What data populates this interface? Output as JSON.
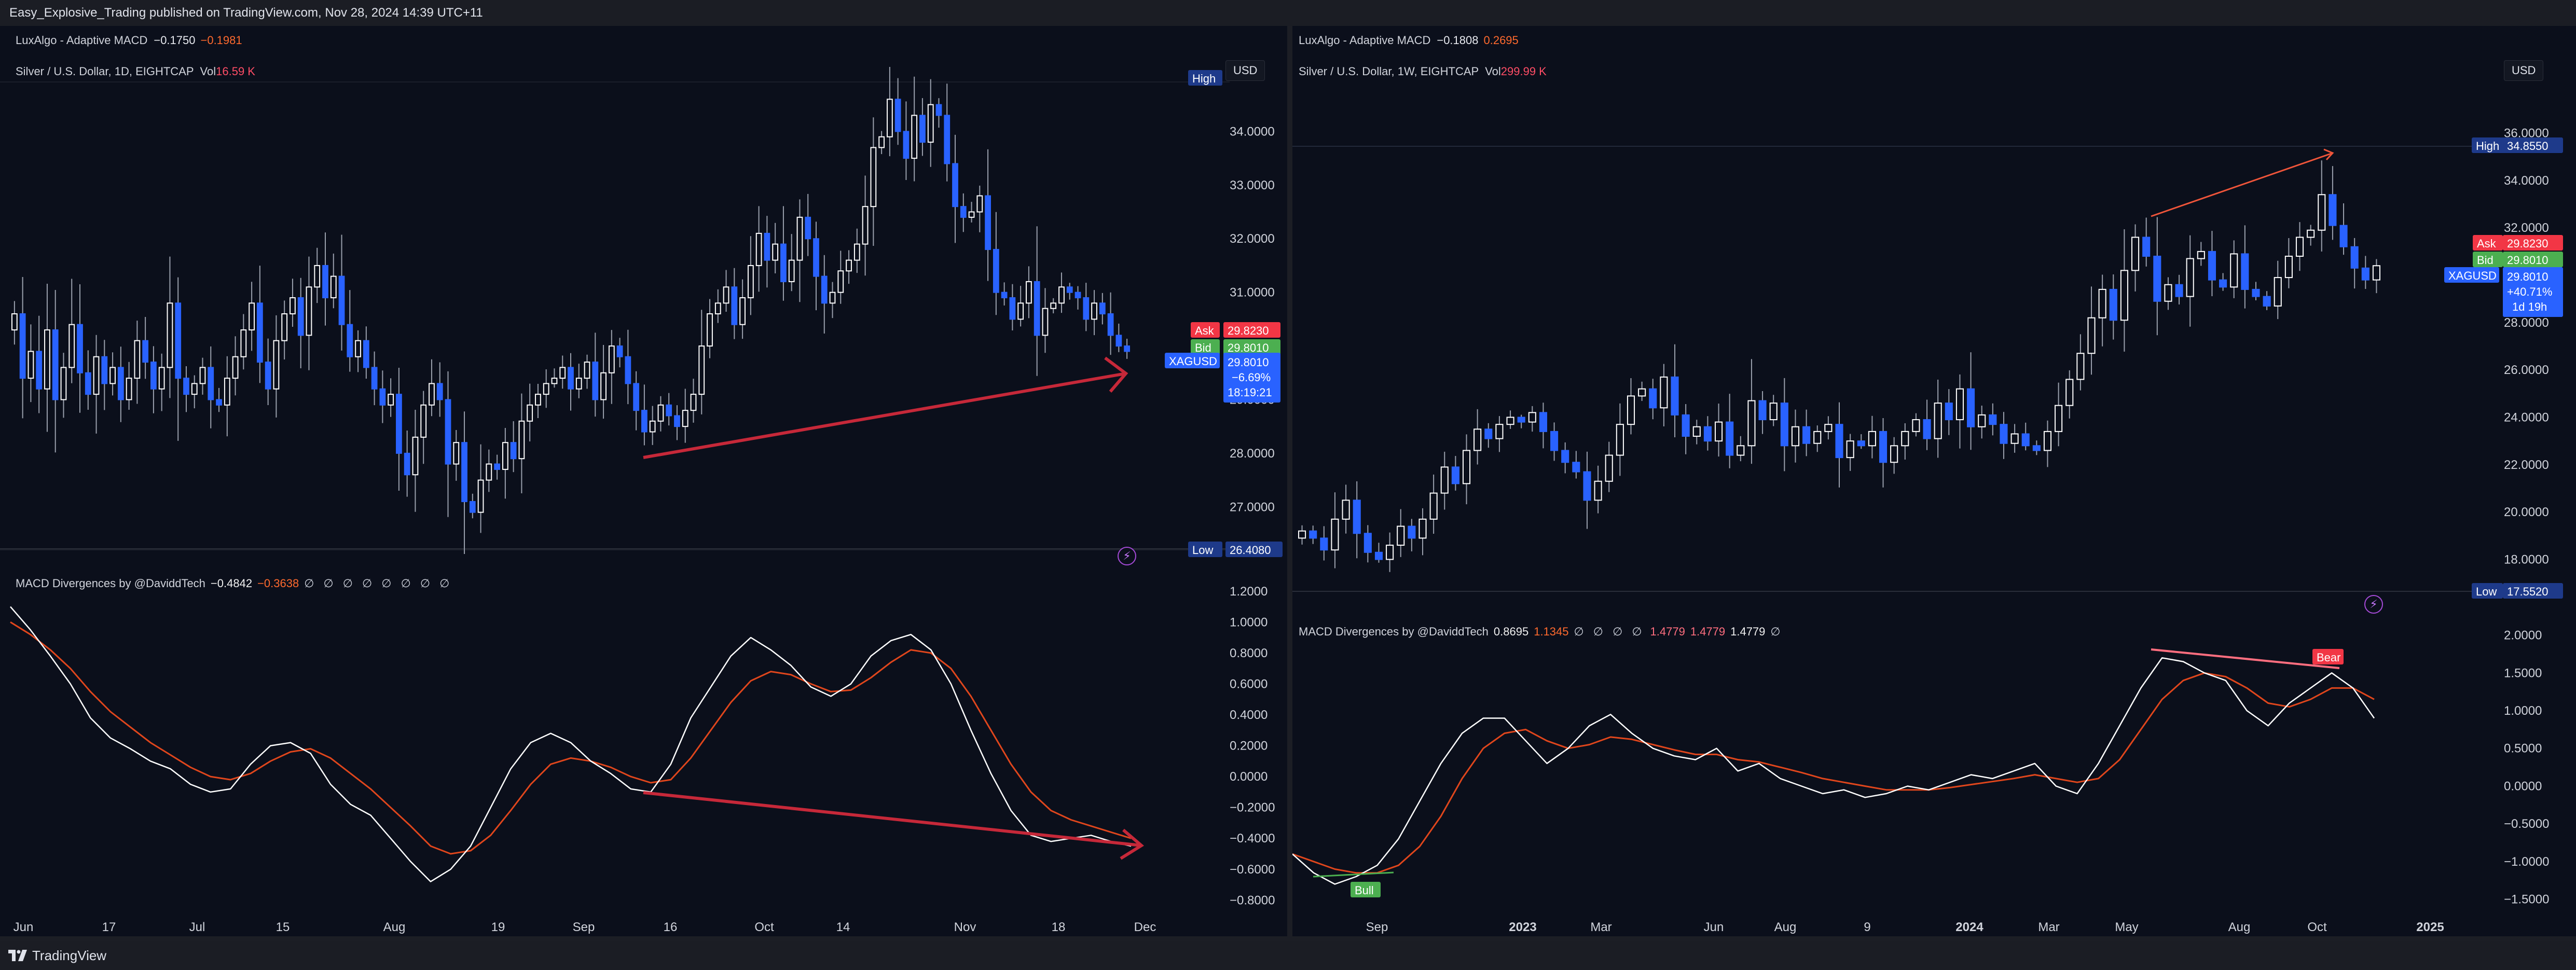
{
  "header": {
    "title": "Easy_Explosive_Trading published on TradingView.com, Nov 28, 2024 14:39 UTC+11"
  },
  "footer": {
    "brand": "TradingView"
  },
  "left": {
    "lux": {
      "name": "LuxAlgo - Adaptive MACD",
      "v1": "−0.1750",
      "v2": "−0.1981"
    },
    "symbol": {
      "name": "Silver / U.S. Dollar, 1D, EIGHTCAP",
      "vol_label": "Vol",
      "vol_value": "16.59 K"
    },
    "usd": "USD",
    "macd": {
      "name": "MACD Divergences by @DaviddTech",
      "v1": "−0.4842",
      "v2": "−0.3638",
      "na": "∅ ∅ ∅ ∅ ∅ ∅ ∅ ∅"
    },
    "bolt": "⚡"
  },
  "right": {
    "lux": {
      "name": "LuxAlgo - Adaptive MACD",
      "v1": "−0.1808",
      "v2": "0.2695"
    },
    "symbol": {
      "name": "Silver / U.S. Dollar, 1W, EIGHTCAP",
      "vol_label": "Vol",
      "vol_value": "299.99 K"
    },
    "usd": "USD",
    "macd": {
      "name": "MACD Divergences by @DaviddTech",
      "v1": "0.8695",
      "v2": "1.1345",
      "na1": "∅ ∅ ∅ ∅",
      "v3": "1.4779",
      "v4": "1.4779",
      "v5": "1.4779",
      "na2": "∅"
    },
    "bolt": "⚡"
  },
  "colors": {
    "up": "#ffffff",
    "down": "#2962ff",
    "wick": "#9aa0ad",
    "macd": "#ffffff",
    "signal": "#e0461c",
    "arrow": "#c62839",
    "ask": "#f23645",
    "bid": "#4caf50",
    "price": "#2962ff",
    "hl": "#1e3a8a",
    "bull": "#4caf50",
    "bear": "#f23645"
  },
  "chart_data": [
    {
      "id": "left-price",
      "type": "candlestick",
      "timeframe": "1D",
      "ylim": [
        26.2,
        35.0
      ],
      "y_ticks": [
        "34.0000",
        "33.0000",
        "32.0000",
        "31.0000",
        "30.0000",
        "29.0000",
        "28.0000",
        "27.0000"
      ],
      "x_ticks": [
        "Jun",
        "17",
        "Jul",
        "15",
        "Aug",
        "19",
        "Sep",
        "16",
        "Oct",
        "14",
        "Nov",
        "18",
        "Dec"
      ],
      "closes": [
        30.6,
        29.4,
        29.9,
        29.2,
        30.3,
        29.0,
        29.6,
        30.4,
        29.5,
        29.1,
        29.8,
        29.3,
        29.6,
        29.0,
        29.4,
        30.1,
        29.7,
        29.2,
        29.6,
        30.8,
        29.4,
        29.1,
        29.3,
        29.6,
        29.0,
        28.9,
        29.4,
        29.8,
        30.3,
        30.8,
        29.7,
        29.2,
        30.1,
        30.6,
        30.9,
        30.2,
        31.1,
        31.5,
        30.9,
        31.3,
        30.4,
        29.8,
        30.1,
        29.6,
        29.2,
        28.9,
        29.1,
        28.0,
        27.6,
        28.3,
        28.9,
        29.3,
        29.0,
        27.8,
        28.2,
        27.1,
        26.9,
        27.5,
        27.8,
        27.7,
        28.2,
        27.9,
        28.6,
        28.9,
        29.1,
        29.3,
        29.4,
        29.6,
        29.2,
        29.4,
        29.7,
        29.0,
        29.5,
        30.0,
        29.8,
        29.3,
        28.8,
        28.4,
        28.6,
        28.9,
        28.7,
        28.5,
        28.8,
        29.1,
        30.0,
        30.6,
        30.8,
        31.1,
        30.4,
        30.9,
        31.5,
        32.1,
        31.6,
        31.9,
        31.2,
        31.6,
        32.4,
        32.0,
        31.3,
        30.8,
        31.0,
        31.4,
        31.6,
        31.9,
        32.6,
        33.7,
        33.9,
        34.6,
        34.0,
        33.5,
        34.3,
        33.8,
        34.5,
        34.3,
        33.4,
        32.6,
        32.4,
        32.5,
        32.8,
        31.8,
        31.0,
        30.9,
        30.5,
        30.8,
        31.2,
        30.2,
        30.7,
        30.8,
        31.1,
        31.0,
        30.9,
        30.5,
        30.8,
        30.6,
        30.2,
        30.0,
        29.9
      ]
    },
    {
      "id": "left-macd",
      "type": "line",
      "ylim": [
        -0.95,
        1.3
      ],
      "y_ticks": [
        "1.2000",
        "1.0000",
        "0.8000",
        "0.6000",
        "0.4000",
        "0.2000",
        "0.0000",
        "−0.2000",
        "−0.4000",
        "−0.6000",
        "−0.8000"
      ],
      "series": [
        {
          "role": "macd",
          "values": [
            1.1,
            0.95,
            0.78,
            0.6,
            0.38,
            0.25,
            0.18,
            0.1,
            0.05,
            -0.05,
            -0.1,
            -0.08,
            0.08,
            0.2,
            0.22,
            0.15,
            -0.05,
            -0.18,
            -0.25,
            -0.4,
            -0.55,
            -0.68,
            -0.6,
            -0.45,
            -0.2,
            0.05,
            0.22,
            0.28,
            0.22,
            0.1,
            0.02,
            -0.08,
            -0.1,
            0.08,
            0.38,
            0.58,
            0.78,
            0.9,
            0.82,
            0.72,
            0.58,
            0.52,
            0.6,
            0.78,
            0.88,
            0.92,
            0.82,
            0.6,
            0.3,
            0.02,
            -0.22,
            -0.38,
            -0.42,
            -0.4,
            -0.38,
            -0.42,
            -0.45
          ]
        },
        {
          "role": "signal",
          "values": [
            1.0,
            0.92,
            0.82,
            0.7,
            0.55,
            0.42,
            0.32,
            0.22,
            0.14,
            0.06,
            0.0,
            -0.02,
            0.02,
            0.1,
            0.16,
            0.18,
            0.12,
            0.02,
            -0.08,
            -0.2,
            -0.32,
            -0.45,
            -0.5,
            -0.48,
            -0.38,
            -0.22,
            -0.05,
            0.08,
            0.12,
            0.1,
            0.06,
            0.0,
            -0.04,
            -0.02,
            0.12,
            0.3,
            0.48,
            0.62,
            0.68,
            0.66,
            0.6,
            0.55,
            0.56,
            0.64,
            0.74,
            0.82,
            0.8,
            0.7,
            0.52,
            0.3,
            0.08,
            -0.1,
            -0.22,
            -0.28,
            -0.32,
            -0.36,
            -0.4
          ]
        }
      ]
    },
    {
      "id": "right-price",
      "type": "candlestick",
      "timeframe": "1W",
      "ylim": [
        17.2,
        36.8
      ],
      "y_ticks": [
        "36.0000",
        "34.0000",
        "32.0000",
        "30.0000",
        "28.0000",
        "26.0000",
        "24.0000",
        "22.0000",
        "20.0000",
        "18.0000"
      ],
      "x_ticks": [
        "Sep",
        "2023",
        "Mar",
        "Jun",
        "Aug",
        "9",
        "2024",
        "Mar",
        "May",
        "Aug",
        "Oct",
        "2025"
      ],
      "closes": [
        19.2,
        18.9,
        18.4,
        19.7,
        20.5,
        19.1,
        18.3,
        18.0,
        18.6,
        19.4,
        18.9,
        19.7,
        20.8,
        21.9,
        21.2,
        22.6,
        23.5,
        23.1,
        23.7,
        24.0,
        23.8,
        24.2,
        23.4,
        22.6,
        22.1,
        21.7,
        20.5,
        21.3,
        22.4,
        23.7,
        24.9,
        25.2,
        24.4,
        25.7,
        24.1,
        23.2,
        23.6,
        23.0,
        23.8,
        22.4,
        22.8,
        24.7,
        23.9,
        24.6,
        22.8,
        23.6,
        22.9,
        23.4,
        23.7,
        22.3,
        23.0,
        22.8,
        23.4,
        22.1,
        22.8,
        23.4,
        23.9,
        23.1,
        24.6,
        23.9,
        25.2,
        23.6,
        24.1,
        23.7,
        22.9,
        23.3,
        22.8,
        22.6,
        23.4,
        24.5,
        25.6,
        26.7,
        28.2,
        29.4,
        28.1,
        30.2,
        31.6,
        30.8,
        28.9,
        29.6,
        29.1,
        30.7,
        31.0,
        29.8,
        29.5,
        30.9,
        29.4,
        29.1,
        28.7,
        29.9,
        30.8,
        31.6,
        31.9,
        33.4,
        32.1,
        31.2,
        30.3,
        29.8,
        30.4
      ]
    },
    {
      "id": "right-macd",
      "type": "line",
      "ylim": [
        -1.75,
        2.1
      ],
      "y_ticks": [
        "2.0000",
        "1.5000",
        "1.0000",
        "0.5000",
        "0.0000",
        "−0.5000",
        "−1.0000",
        "−1.5000"
      ],
      "series": [
        {
          "role": "macd",
          "values": [
            -0.9,
            -1.15,
            -1.3,
            -1.2,
            -1.05,
            -0.7,
            -0.2,
            0.3,
            0.7,
            0.9,
            0.9,
            0.6,
            0.3,
            0.5,
            0.8,
            0.95,
            0.7,
            0.5,
            0.4,
            0.35,
            0.5,
            0.2,
            0.3,
            0.1,
            0.0,
            -0.1,
            -0.05,
            -0.15,
            -0.1,
            0.0,
            -0.05,
            0.05,
            0.15,
            0.1,
            0.2,
            0.3,
            0.0,
            -0.1,
            0.3,
            0.8,
            1.3,
            1.7,
            1.65,
            1.5,
            1.4,
            1.0,
            0.8,
            1.1,
            1.3,
            1.5,
            1.3,
            0.9
          ]
        },
        {
          "role": "signal",
          "values": [
            -0.9,
            -1.0,
            -1.1,
            -1.15,
            -1.15,
            -1.05,
            -0.8,
            -0.4,
            0.1,
            0.5,
            0.7,
            0.75,
            0.6,
            0.5,
            0.55,
            0.65,
            0.62,
            0.55,
            0.48,
            0.42,
            0.42,
            0.35,
            0.32,
            0.25,
            0.18,
            0.1,
            0.05,
            0.0,
            -0.05,
            -0.05,
            -0.05,
            -0.02,
            0.02,
            0.06,
            0.1,
            0.15,
            0.1,
            0.05,
            0.1,
            0.35,
            0.75,
            1.15,
            1.4,
            1.5,
            1.45,
            1.3,
            1.1,
            1.05,
            1.15,
            1.3,
            1.3,
            1.15
          ]
        }
      ]
    }
  ],
  "left_price_labels": {
    "high": "High",
    "low": "Low",
    "low_value": "26.4080",
    "ask": "Ask",
    "ask_value": "29.8230",
    "bid": "Bid",
    "bid_value": "29.8010",
    "symbol": "XAGUSD",
    "price": "29.8010",
    "change": "−6.69%",
    "countdown": "18:19:21"
  },
  "right_price_labels": {
    "high": "High",
    "high_value": "34.8550",
    "low": "Low",
    "low_value": "17.5520",
    "ask": "Ask",
    "ask_value": "29.8230",
    "bid": "Bid",
    "bid_value": "29.8010",
    "symbol": "XAGUSD",
    "price": "29.8010",
    "change": "+40.71%",
    "countdown": "1d 19h",
    "bull": "Bull",
    "bear": "Bear"
  }
}
